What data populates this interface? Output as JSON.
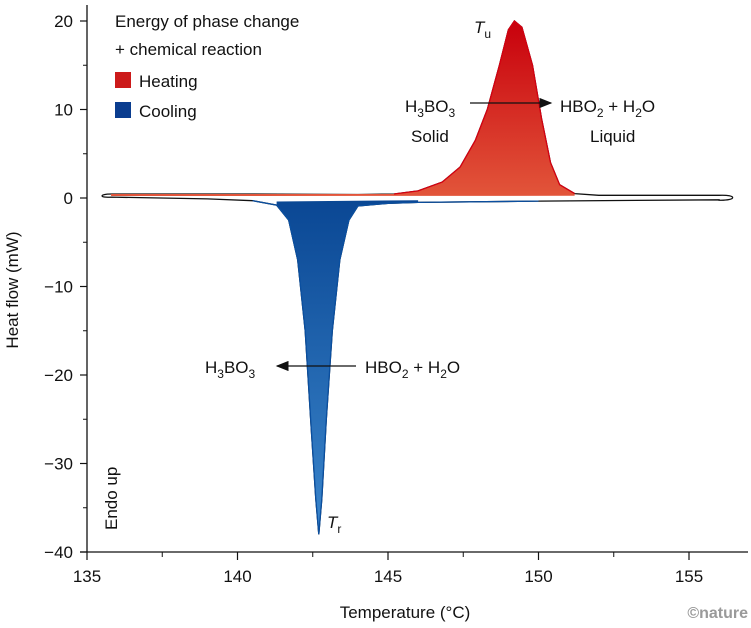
{
  "chart_data": {
    "type": "area",
    "title": "",
    "xlabel": "Temperature (°C)",
    "xlabel_parts": [
      "Temperature (",
      "o",
      "C)"
    ],
    "ylabel": "Heat flow (mW)",
    "xlim": [
      135,
      157
    ],
    "ylim": [
      -40,
      22
    ],
    "xticks": [
      135,
      140,
      145,
      150,
      155
    ],
    "yticks": [
      20,
      10,
      0,
      -10,
      -20,
      -30,
      -40
    ],
    "ytick_labels": [
      "20",
      "10",
      "0",
      "−10",
      "−20",
      "−30",
      "−40"
    ],
    "grid": false,
    "legend": {
      "placement": "top-left",
      "title_line1": "Energy of phase change",
      "title_line2": "+ chemical reaction",
      "entries": [
        {
          "label": "Heating",
          "color": "#cc1a1a"
        },
        {
          "label": "Cooling",
          "color": "#0a3d8f"
        }
      ]
    },
    "series": [
      {
        "name": "Heating",
        "color_top": "#c8000c",
        "color_bottom": "#e2553a",
        "x": [
          135.8,
          140,
          144,
          145.2,
          146,
          146.8,
          147.4,
          147.9,
          148.3,
          148.7,
          149.0,
          149.2,
          149.45,
          149.8,
          150.1,
          150.4,
          150.7,
          151.2,
          152,
          156.0
        ],
        "y": [
          0.45,
          0.45,
          0.4,
          0.45,
          0.8,
          1.8,
          3.5,
          6.5,
          10,
          15,
          19,
          20,
          19.3,
          15,
          9,
          4,
          1.5,
          0.5,
          0.3,
          0.3
        ]
      },
      {
        "name": "Cooling",
        "color_top": "#0a4794",
        "color_bottom": "#3b86cc",
        "x": [
          135.8,
          139,
          140.5,
          141.3,
          141.7,
          142.0,
          142.25,
          142.45,
          142.6,
          142.7,
          142.8,
          142.95,
          143.15,
          143.4,
          143.7,
          144.0,
          145,
          146,
          150,
          156.0
        ],
        "y": [
          0.1,
          -0.1,
          -0.3,
          -0.8,
          -2.5,
          -7,
          -15,
          -26,
          -34,
          -38,
          -34,
          -25,
          -15,
          -7,
          -2.5,
          -0.9,
          -0.6,
          -0.5,
          -0.35,
          -0.2
        ]
      }
    ],
    "annotations": {
      "peak_heating": {
        "main": "T",
        "sub": "u",
        "x": 149.1,
        "y": 20
      },
      "peak_cooling": {
        "main": "T",
        "sub": "r",
        "x": 142.7,
        "y": -38
      },
      "heating_reactant": [
        "H",
        "3",
        "BO",
        "3"
      ],
      "heating_product": [
        "HBO",
        "2",
        " + H",
        "2",
        "O"
      ],
      "heating_reactant_state": "Solid",
      "heating_product_state": "Liquid",
      "cooling_product": [
        "H",
        "3",
        "BO",
        "3"
      ],
      "cooling_reactant": [
        "HBO",
        "2",
        " + H",
        "2",
        "O"
      ],
      "endo": "Endo up"
    },
    "credit": "©nature"
  }
}
